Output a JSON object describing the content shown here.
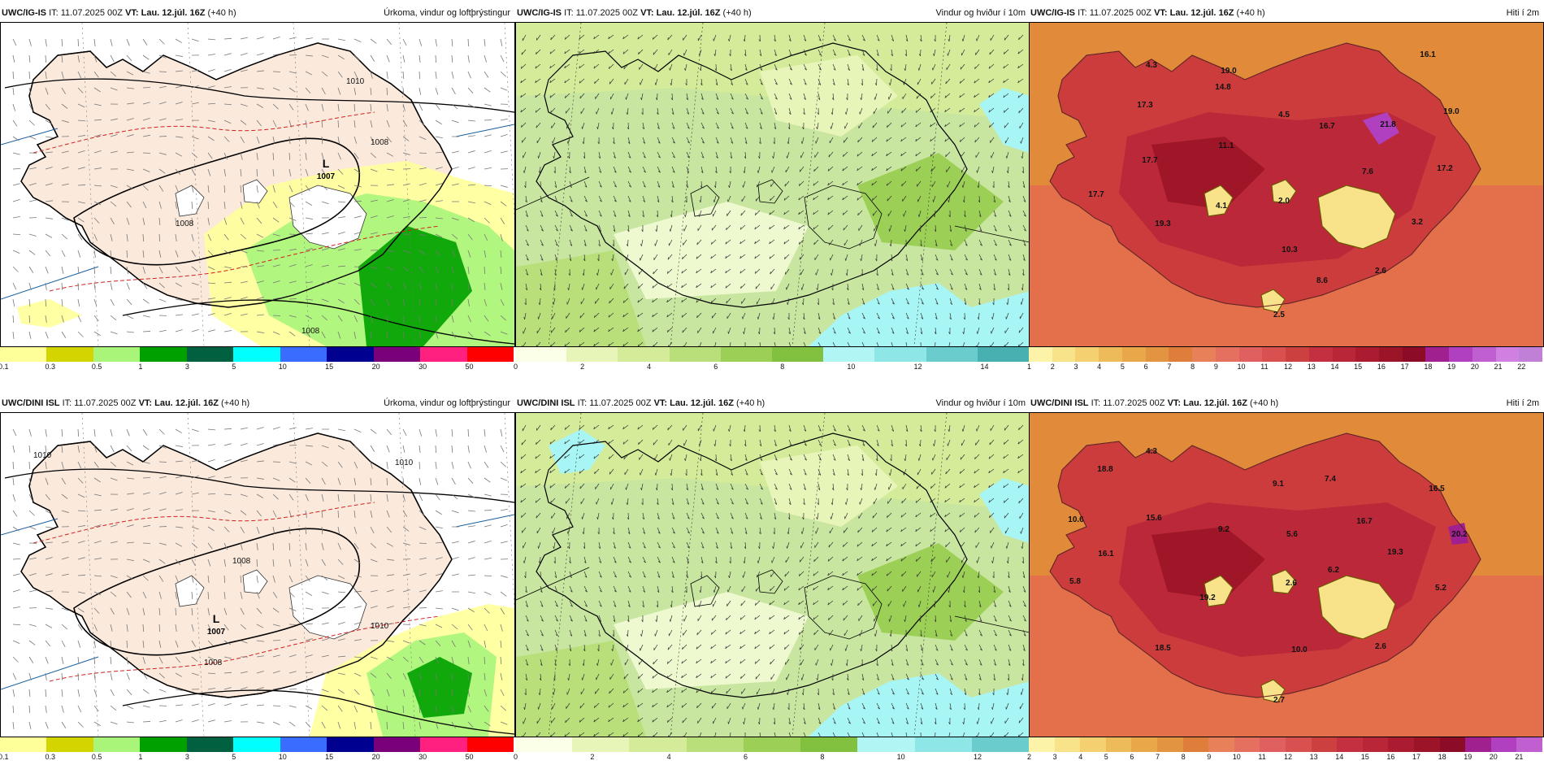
{
  "panels": [
    {
      "id": "p1",
      "model": "UWC/IG-IS",
      "it_label": "IT:",
      "it": "11.07.2025 00Z",
      "vt_label": "VT:",
      "vt": "Lau. 12.júl. 16Z",
      "lead": "(+40 h)",
      "field": "Úrkoma, vindur og loftþrýstingur",
      "colorbar": {
        "colors": [
          "#ffff9a",
          "#d4d400",
          "#a8f57a",
          "#00a000",
          "#006040",
          "#00ffff",
          "#3a6cff",
          "#000090",
          "#7a007a",
          "#ff2080",
          "#ff0000"
        ],
        "ticks": [
          "0.1",
          "0.3",
          "0.5",
          "1",
          "3",
          "5",
          "10",
          "15",
          "20",
          "30",
          "50"
        ]
      },
      "low": {
        "letter": "L",
        "value": "1007"
      },
      "isobars": [
        "1010",
        "1008",
        "1008",
        "1008"
      ]
    },
    {
      "id": "p2",
      "model": "UWC/IG-IS",
      "it_label": "IT:",
      "it": "11.07.2025 00Z",
      "vt_label": "VT:",
      "vt": "Lau. 12.júl. 16Z",
      "lead": "(+40 h)",
      "field": "Vindur og hviður í 10m",
      "colorbar": {
        "colors": [
          "#fbffe8",
          "#e8f5b8",
          "#d4ec9a",
          "#b8df7a",
          "#9ccf55",
          "#82c040",
          "#b2f5f5",
          "#8ee6e6",
          "#6acccc",
          "#48b0b0"
        ],
        "ticks": [
          "0",
          "2",
          "4",
          "6",
          "8",
          "10",
          "12",
          "14"
        ]
      }
    },
    {
      "id": "p3",
      "model": "UWC/IG-IS",
      "it_label": "IT:",
      "it": "11.07.2025 00Z",
      "vt_label": "VT:",
      "vt": "Lau. 12.júl. 16Z",
      "lead": "(+40 h)",
      "field": "Hiti í 2m",
      "colorbar": {
        "colors": [
          "#fdf3a8",
          "#f8e38a",
          "#f4d070",
          "#edbb5a",
          "#e8a84a",
          "#e39440",
          "#de7e3a",
          "#e8805a",
          "#e67060",
          "#e06060",
          "#d85050",
          "#cc4040",
          "#c43040",
          "#b82638",
          "#ac1c30",
          "#9c1428",
          "#8c0c28",
          "#a02090",
          "#b040c0",
          "#c060d0",
          "#d080e0",
          "#c080d8"
        ],
        "ticks": [
          "1",
          "2",
          "3",
          "4",
          "5",
          "6",
          "7",
          "8",
          "9",
          "10",
          "11",
          "12",
          "13",
          "14",
          "15",
          "16",
          "17",
          "18",
          "19",
          "20",
          "21",
          "22"
        ]
      },
      "values": [
        {
          "t": "4.3"
        },
        {
          "t": "16.1"
        },
        {
          "t": "19.0"
        },
        {
          "t": "14.8"
        },
        {
          "t": "17.3"
        },
        {
          "t": "4.5"
        },
        {
          "t": "16.7"
        },
        {
          "t": "21.8"
        },
        {
          "t": "19.0"
        },
        {
          "t": "11.1"
        },
        {
          "t": "17.7"
        },
        {
          "t": "7.6"
        },
        {
          "t": "17.2"
        },
        {
          "t": "17.7"
        },
        {
          "t": "4.1"
        },
        {
          "t": "2.0"
        },
        {
          "t": "19.3"
        },
        {
          "t": "3.2"
        },
        {
          "t": "10.3"
        },
        {
          "t": "2.6"
        },
        {
          "t": "8.6"
        },
        {
          "t": "2.5"
        }
      ]
    },
    {
      "id": "p4",
      "model": "UWC/DINI ISL",
      "it_label": "IT:",
      "it": "11.07.2025 00Z",
      "vt_label": "VT:",
      "vt": "Lau. 12.júl. 16Z",
      "lead": "(+40 h)",
      "field": "Úrkoma, vindur og loftþrýstingur",
      "colorbar": {
        "colors": [
          "#ffff9a",
          "#d4d400",
          "#a8f57a",
          "#00a000",
          "#006040",
          "#00ffff",
          "#3a6cff",
          "#000090",
          "#7a007a",
          "#ff2080",
          "#ff0000"
        ],
        "ticks": [
          "0.1",
          "0.3",
          "0.5",
          "1",
          "3",
          "5",
          "10",
          "15",
          "20",
          "30",
          "50"
        ]
      },
      "low": {
        "letter": "L",
        "value": "1007"
      },
      "isobars": [
        "1010",
        "1010",
        "1008",
        "1008",
        "1010"
      ]
    },
    {
      "id": "p5",
      "model": "UWC/DINI ISL",
      "it_label": "IT:",
      "it": "11.07.2025 00Z",
      "vt_label": "VT:",
      "vt": "Lau. 12.júl. 16Z",
      "lead": "(+40 h)",
      "field": "Vindur og hviður í 10m",
      "colorbar": {
        "colors": [
          "#fbffe8",
          "#e8f5b8",
          "#d4ec9a",
          "#b8df7a",
          "#9ccf55",
          "#82c040",
          "#b2f5f5",
          "#8ee6e6",
          "#6acccc"
        ],
        "ticks": [
          "0",
          "2",
          "4",
          "6",
          "8",
          "10",
          "12"
        ]
      }
    },
    {
      "id": "p6",
      "model": "UWC/DINI ISL",
      "it_label": "IT:",
      "it": "11.07.2025 00Z",
      "vt_label": "VT:",
      "vt": "Lau. 12.júl. 16Z",
      "lead": "(+40 h)",
      "field": "Hiti í 2m",
      "colorbar": {
        "colors": [
          "#fdf3a8",
          "#f8e38a",
          "#f4d070",
          "#edbb5a",
          "#e8a84a",
          "#e39440",
          "#de7e3a",
          "#e8805a",
          "#e67060",
          "#e06060",
          "#d85050",
          "#cc4040",
          "#c43040",
          "#b82638",
          "#ac1c30",
          "#9c1428",
          "#8c0c28",
          "#a02090",
          "#b040c0",
          "#c060d0"
        ],
        "ticks": [
          "2",
          "3",
          "4",
          "5",
          "6",
          "7",
          "8",
          "9",
          "10",
          "11",
          "12",
          "13",
          "14",
          "15",
          "16",
          "17",
          "18",
          "19",
          "20",
          "21"
        ]
      },
      "values": [
        {
          "t": "4.3"
        },
        {
          "t": "18.8"
        },
        {
          "t": "9.1"
        },
        {
          "t": "7.4"
        },
        {
          "t": "16.5"
        },
        {
          "t": "10.6"
        },
        {
          "t": "15.6"
        },
        {
          "t": "9.2"
        },
        {
          "t": "5.6"
        },
        {
          "t": "16.7"
        },
        {
          "t": "20.2"
        },
        {
          "t": "16.1"
        },
        {
          "t": "19.3"
        },
        {
          "t": "5.8"
        },
        {
          "t": "6.2"
        },
        {
          "t": "5.2"
        },
        {
          "t": "19.2"
        },
        {
          "t": "2.6"
        },
        {
          "t": "18.5"
        },
        {
          "t": "10.0"
        },
        {
          "t": "2.6"
        },
        {
          "t": "2.7"
        }
      ]
    }
  ]
}
